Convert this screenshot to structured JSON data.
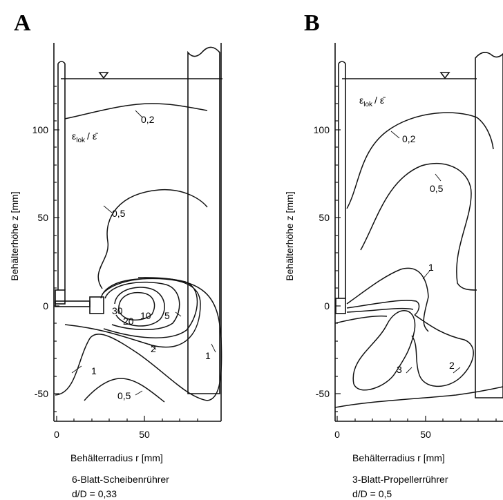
{
  "panels": [
    {
      "letter": "A",
      "quantity": "ε",
      "quantity_sub": "lok",
      "quantity_over": "/ ε̄",
      "y_ticks": [
        "100",
        "50",
        "0",
        "-50"
      ],
      "x_ticks": [
        "0",
        "50"
      ],
      "xlabel": "Behälterradius  r  [mm]",
      "ylabel": "Behälterhöhe  z  [mm]",
      "contour_labels": [
        "0,2",
        "0,5",
        "30",
        "20",
        "10",
        "5",
        "2",
        "1",
        "1",
        "0,5"
      ],
      "caption_line1": "6-Blatt-Scheibenrührer",
      "caption_line2": "d/D = 0,33"
    },
    {
      "letter": "B",
      "quantity": "ε",
      "quantity_sub": "lok",
      "quantity_over": "/ ε̄",
      "y_ticks": [
        "100",
        "50",
        "0",
        "-50"
      ],
      "x_ticks": [
        "0",
        "50"
      ],
      "xlabel": "Behälterradius  r  [mm]",
      "ylabel": "Behälterhöhe  z  [mm]",
      "contour_labels": [
        "0,2",
        "0,5",
        "1",
        "3",
        "2"
      ],
      "caption_line1": "3-Blatt-Propellerrührer",
      "caption_line2": "d/D = 0,5"
    }
  ]
}
